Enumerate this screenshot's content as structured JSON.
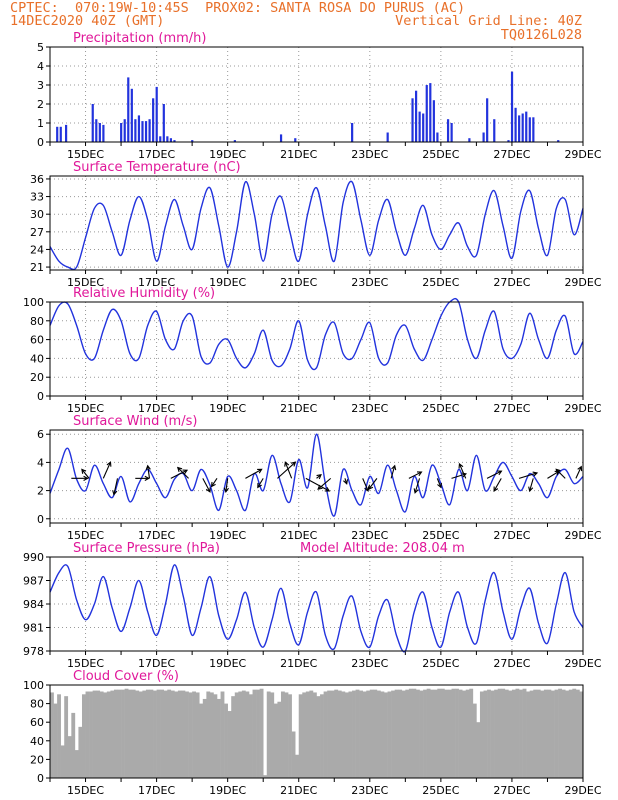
{
  "header": {
    "line1_left": "CPTEC:  070:19W-10:45S  PROX02: SANTA ROSA DO PURUS (AC)",
    "line2_left": "14DEC2020 40Z (GMT)",
    "line2_right": "Vertical Grid Line: 40Z",
    "line3_right": "TQ0126L028"
  },
  "colors": {
    "header": "#e8702a",
    "title": "#e0189a",
    "series": "#2233dd",
    "cloud": "#aaaaaa",
    "wind_arrow": "#000000"
  },
  "x_tick_labels": [
    "15DEC",
    "17DEC",
    "19DEC",
    "21DEC",
    "23DEC",
    "25DEC",
    "27DEC",
    "29DEC"
  ],
  "chart_data": [
    {
      "type": "bar",
      "title": "Precipitation (mm/h)",
      "xlabel": "",
      "ylabel": "",
      "ylim": [
        0,
        5
      ],
      "yticks": [
        0,
        1,
        2,
        3,
        4,
        5
      ],
      "grid": true,
      "x_range_days": [
        14.0,
        29.0
      ],
      "x": [
        14.2,
        14.3,
        14.45,
        15.2,
        15.3,
        15.4,
        15.5,
        16.0,
        16.1,
        16.2,
        16.3,
        16.4,
        16.5,
        16.6,
        16.7,
        16.8,
        16.9,
        17.0,
        17.1,
        17.2,
        17.3,
        17.4,
        17.5,
        18.0,
        19.2,
        20.5,
        20.9,
        22.5,
        23.5,
        24.2,
        24.3,
        24.4,
        24.5,
        24.6,
        24.7,
        24.8,
        24.9,
        25.2,
        25.3,
        25.8,
        26.2,
        26.3,
        26.5,
        26.9,
        27.0,
        27.1,
        27.2,
        27.3,
        27.4,
        27.5,
        27.6,
        28.3
      ],
      "values": [
        0.8,
        0.8,
        0.9,
        2.0,
        1.2,
        1.0,
        0.9,
        1.0,
        1.2,
        3.4,
        2.8,
        1.2,
        1.4,
        1.1,
        1.1,
        1.2,
        2.3,
        2.9,
        0.3,
        2.0,
        0.3,
        0.2,
        0.1,
        0.1,
        0.1,
        0.4,
        0.2,
        1.0,
        0.5,
        2.3,
        2.7,
        1.6,
        1.5,
        3.0,
        3.1,
        2.2,
        0.5,
        1.2,
        1.0,
        0.2,
        0.5,
        2.3,
        1.2,
        0.1,
        3.7,
        1.8,
        1.4,
        1.5,
        1.6,
        1.3,
        1.3,
        0.1
      ]
    },
    {
      "type": "line",
      "title": "Surface Temperature (nC)",
      "xlabel": "",
      "ylabel": "",
      "ylim": [
        20.5,
        36.5
      ],
      "yticks": [
        21,
        24,
        27,
        30,
        33,
        36
      ],
      "grid": true,
      "x_range_days": [
        14.0,
        29.0
      ],
      "x": [
        14.0,
        14.25,
        14.5,
        14.75,
        15.0,
        15.25,
        15.5,
        15.75,
        16.0,
        16.25,
        16.5,
        16.75,
        17.0,
        17.25,
        17.5,
        17.75,
        18.0,
        18.25,
        18.5,
        18.75,
        19.0,
        19.25,
        19.5,
        19.75,
        20.0,
        20.25,
        20.5,
        20.75,
        21.0,
        21.25,
        21.5,
        21.75,
        22.0,
        22.25,
        22.5,
        22.75,
        23.0,
        23.25,
        23.5,
        23.75,
        24.0,
        24.25,
        24.5,
        24.75,
        25.0,
        25.25,
        25.5,
        25.75,
        26.0,
        26.25,
        26.5,
        26.75,
        27.0,
        27.25,
        27.5,
        27.75,
        28.0,
        28.25,
        28.5,
        28.75,
        29.0
      ],
      "series": [
        {
          "values": [
            24.5,
            22.0,
            21.0,
            21.0,
            26.0,
            31.0,
            31.5,
            27.0,
            23.0,
            29.0,
            33.0,
            29.0,
            22.0,
            28.0,
            32.5,
            28.0,
            24.0,
            31.0,
            34.5,
            28.0,
            21.0,
            27.0,
            35.5,
            30.0,
            22.0,
            30.0,
            33.0,
            27.0,
            22.0,
            30.0,
            34.5,
            28.0,
            22.0,
            32.0,
            35.5,
            29.0,
            23.0,
            29.0,
            32.5,
            27.0,
            23.0,
            27.5,
            31.5,
            26.5,
            24.0,
            26.5,
            28.5,
            24.5,
            23.0,
            30.0,
            34.0,
            28.0,
            22.5,
            30.5,
            34.0,
            27.5,
            23.0,
            31.0,
            32.5,
            26.5,
            31.0
          ]
        }
      ]
    },
    {
      "type": "line",
      "title": "Relative Humidity (%)",
      "xlabel": "",
      "ylabel": "",
      "ylim": [
        0,
        100
      ],
      "yticks": [
        0,
        20,
        40,
        60,
        80,
        100
      ],
      "grid": true,
      "x_range_days": [
        14.0,
        29.0
      ],
      "x": [
        14.0,
        14.25,
        14.5,
        14.75,
        15.0,
        15.25,
        15.5,
        15.75,
        16.0,
        16.25,
        16.5,
        16.75,
        17.0,
        17.25,
        17.5,
        17.75,
        18.0,
        18.25,
        18.5,
        18.75,
        19.0,
        19.25,
        19.5,
        19.75,
        20.0,
        20.25,
        20.5,
        20.75,
        21.0,
        21.25,
        21.5,
        21.75,
        22.0,
        22.25,
        22.5,
        22.75,
        23.0,
        23.25,
        23.5,
        23.75,
        24.0,
        24.25,
        24.5,
        24.75,
        25.0,
        25.25,
        25.5,
        25.75,
        26.0,
        26.25,
        26.5,
        26.75,
        27.0,
        27.25,
        27.5,
        27.75,
        28.0,
        28.25,
        28.5,
        28.75,
        29.0
      ],
      "series": [
        {
          "values": [
            75,
            96,
            98,
            75,
            45,
            40,
            70,
            92,
            80,
            45,
            40,
            75,
            90,
            60,
            50,
            80,
            85,
            42,
            35,
            55,
            60,
            40,
            30,
            45,
            70,
            38,
            32,
            50,
            80,
            38,
            30,
            65,
            78,
            45,
            40,
            60,
            78,
            40,
            35,
            65,
            75,
            50,
            38,
            60,
            85,
            100,
            100,
            60,
            40,
            70,
            90,
            50,
            40,
            55,
            88,
            60,
            40,
            70,
            85,
            45,
            58
          ]
        }
      ]
    },
    {
      "type": "line",
      "title": "Surface Wind (m/s)",
      "xlabel": "",
      "ylabel": "",
      "ylim": [
        -0.3,
        6.3
      ],
      "yticks": [
        0,
        2,
        4,
        6
      ],
      "grid": true,
      "x_range_days": [
        14.0,
        29.0
      ],
      "x": [
        14.0,
        14.25,
        14.5,
        14.75,
        15.0,
        15.25,
        15.5,
        15.75,
        16.0,
        16.25,
        16.5,
        16.75,
        17.0,
        17.25,
        17.5,
        17.75,
        18.0,
        18.25,
        18.5,
        18.75,
        19.0,
        19.25,
        19.5,
        19.75,
        20.0,
        20.25,
        20.5,
        20.75,
        21.0,
        21.25,
        21.5,
        21.75,
        22.0,
        22.25,
        22.5,
        22.75,
        23.0,
        23.25,
        23.5,
        23.75,
        24.0,
        24.25,
        24.5,
        24.75,
        25.0,
        25.25,
        25.5,
        25.75,
        26.0,
        26.25,
        26.5,
        26.75,
        27.0,
        27.25,
        27.5,
        27.75,
        28.0,
        28.25,
        28.5,
        28.75,
        29.0
      ],
      "series": [
        {
          "values": [
            1.8,
            3.5,
            5.0,
            2.8,
            2.0,
            3.8,
            2.5,
            1.5,
            3.0,
            1.2,
            2.5,
            3.5,
            2.5,
            1.5,
            2.8,
            3.2,
            2.0,
            3.5,
            2.4,
            0.6,
            3.0,
            2.0,
            0.6,
            3.2,
            2.0,
            4.5,
            2.5,
            1.2,
            4.2,
            2.2,
            6.0,
            2.5,
            0.2,
            3.5,
            2.0,
            1.0,
            3.0,
            1.8,
            3.8,
            2.0,
            0.5,
            3.0,
            1.5,
            3.8,
            2.5,
            1.0,
            3.5,
            2.0,
            4.5,
            2.0,
            3.0,
            4.0,
            3.0,
            2.0,
            3.2,
            2.5,
            1.5,
            3.0,
            3.5,
            2.5,
            3.0
          ]
        }
      ],
      "wind_vectors": {
        "x": [
          14.6,
          15.1,
          15.5,
          15.9,
          16.4,
          16.8,
          17.4,
          17.9,
          18.3,
          18.7,
          19.0,
          19.5,
          20.0,
          20.4,
          20.8,
          21.2,
          21.5,
          21.9,
          22.3,
          22.8,
          23.2,
          23.6,
          24.1,
          24.4,
          24.9,
          25.3,
          25.7,
          26.3,
          26.7,
          27.2,
          27.6,
          28.0,
          28.5,
          28.8
        ],
        "u": [
          1.8,
          -0.8,
          0.8,
          -0.4,
          1.5,
          -0.2,
          1.8,
          -1.2,
          0.8,
          -0.6,
          -0.2,
          1.8,
          -0.6,
          2.0,
          -0.7,
          2.6,
          0.5,
          -1.4,
          0.2,
          0.6,
          -0.9,
          0.4,
          1.4,
          -0.5,
          0.4,
          1.6,
          -0.7,
          1.6,
          -0.8,
          2.0,
          -0.4,
          1.3,
          -1.0,
          0.6
        ],
        "v": [
          0.0,
          1.0,
          1.8,
          -1.8,
          0.0,
          1.4,
          0.9,
          1.2,
          -1.5,
          -0.9,
          -1.5,
          1.0,
          -1.0,
          1.8,
          1.8,
          -1.4,
          0.4,
          -1.2,
          -0.6,
          -1.4,
          -1.2,
          1.4,
          0.7,
          -1.6,
          -1.0,
          0.5,
          1.6,
          0.8,
          -1.4,
          0.6,
          -1.4,
          0.8,
          1.0,
          1.3
        ]
      }
    },
    {
      "type": "line",
      "title": "Surface Pressure (hPa)",
      "annotation": "Model Altitude: 208.04 m",
      "xlabel": "",
      "ylabel": "",
      "ylim": [
        978,
        990
      ],
      "yticks": [
        978,
        981,
        984,
        987,
        990
      ],
      "grid": true,
      "x_range_days": [
        14.0,
        29.0
      ],
      "x": [
        14.0,
        14.25,
        14.5,
        14.75,
        15.0,
        15.25,
        15.5,
        15.75,
        16.0,
        16.25,
        16.5,
        16.75,
        17.0,
        17.25,
        17.5,
        17.75,
        18.0,
        18.25,
        18.5,
        18.75,
        19.0,
        19.25,
        19.5,
        19.75,
        20.0,
        20.25,
        20.5,
        20.75,
        21.0,
        21.25,
        21.5,
        21.75,
        22.0,
        22.25,
        22.5,
        22.75,
        23.0,
        23.25,
        23.5,
        23.75,
        24.0,
        24.25,
        24.5,
        24.75,
        25.0,
        25.25,
        25.5,
        25.75,
        26.0,
        26.25,
        26.5,
        26.75,
        27.0,
        27.25,
        27.5,
        27.75,
        28.0,
        28.25,
        28.5,
        28.75,
        29.0
      ],
      "series": [
        {
          "values": [
            985.5,
            988.0,
            988.8,
            984.5,
            982.0,
            984.0,
            987.5,
            983.5,
            980.5,
            983.5,
            987.0,
            983.0,
            980.0,
            984.0,
            989.0,
            985.0,
            980.0,
            983.5,
            987.5,
            982.5,
            979.5,
            982.0,
            985.5,
            981.0,
            978.5,
            982.0,
            986.0,
            981.5,
            978.8,
            983.0,
            985.5,
            980.0,
            978.3,
            982.5,
            985.0,
            980.5,
            978.5,
            982.5,
            984.5,
            980.0,
            978.0,
            983.0,
            985.5,
            981.0,
            978.5,
            983.0,
            985.5,
            981.0,
            979.0,
            984.5,
            988.0,
            983.0,
            979.5,
            983.5,
            986.0,
            981.5,
            979.0,
            984.0,
            988.0,
            983.0,
            981.0
          ]
        }
      ]
    },
    {
      "type": "bar",
      "title": "Cloud Cover (%)",
      "xlabel": "",
      "ylabel": "",
      "ylim": [
        0,
        100
      ],
      "yticks": [
        0,
        20,
        40,
        60,
        80,
        100
      ],
      "grid": false,
      "x_range_days": [
        14.0,
        29.0
      ],
      "x": [
        14.0,
        14.1,
        14.2,
        14.3,
        14.4,
        14.5,
        14.6,
        14.7,
        14.8,
        14.9,
        15.0,
        15.1,
        15.2,
        15.3,
        15.4,
        15.5,
        15.6,
        15.7,
        15.8,
        15.9,
        16.0,
        16.1,
        16.2,
        16.3,
        16.4,
        16.5,
        16.6,
        16.7,
        16.8,
        16.9,
        17.0,
        17.1,
        17.2,
        17.3,
        17.4,
        17.5,
        17.6,
        17.7,
        17.8,
        17.9,
        18.0,
        18.1,
        18.2,
        18.3,
        18.4,
        18.5,
        18.6,
        18.7,
        18.8,
        18.9,
        19.0,
        19.1,
        19.2,
        19.3,
        19.4,
        19.5,
        19.6,
        19.7,
        19.8,
        19.9,
        20.0,
        20.1,
        20.2,
        20.3,
        20.4,
        20.5,
        20.6,
        20.7,
        20.8,
        20.9,
        21.0,
        21.1,
        21.2,
        21.3,
        21.4,
        21.5,
        21.6,
        21.7,
        21.8,
        21.9,
        22.0,
        22.1,
        22.2,
        22.3,
        22.4,
        22.5,
        22.6,
        22.7,
        22.8,
        22.9,
        23.0,
        23.1,
        23.2,
        23.3,
        23.4,
        23.5,
        23.6,
        23.7,
        23.8,
        23.9,
        24.0,
        24.1,
        24.2,
        24.3,
        24.4,
        24.5,
        24.6,
        24.7,
        24.8,
        24.9,
        25.0,
        25.1,
        25.2,
        25.3,
        25.4,
        25.5,
        25.6,
        25.7,
        25.8,
        25.9,
        26.0,
        26.1,
        26.2,
        26.3,
        26.4,
        26.5,
        26.6,
        26.7,
        26.8,
        26.9,
        27.0,
        27.1,
        27.2,
        27.3,
        27.4,
        27.5,
        27.6,
        27.7,
        27.8,
        27.9,
        28.0,
        28.1,
        28.2,
        28.3,
        28.4,
        28.5,
        28.6,
        28.7,
        28.8,
        28.9
      ],
      "values": [
        92,
        80,
        90,
        35,
        88,
        45,
        70,
        30,
        55,
        90,
        93,
        93,
        94,
        94,
        93,
        92,
        93,
        94,
        95,
        95,
        95,
        96,
        95,
        95,
        94,
        93,
        94,
        95,
        95,
        94,
        95,
        95,
        94,
        95,
        94,
        93,
        94,
        94,
        93,
        92,
        93,
        92,
        80,
        85,
        93,
        92,
        90,
        85,
        93,
        80,
        72,
        88,
        92,
        93,
        94,
        93,
        90,
        95,
        95,
        96,
        3,
        93,
        92,
        80,
        82,
        93,
        92,
        90,
        50,
        25,
        90,
        92,
        93,
        94,
        92,
        88,
        90,
        93,
        94,
        94,
        95,
        94,
        93,
        92,
        93,
        94,
        95,
        94,
        93,
        94,
        95,
        95,
        94,
        93,
        92,
        93,
        94,
        95,
        95,
        94,
        95,
        96,
        96,
        95,
        94,
        95,
        96,
        95,
        95,
        96,
        96,
        95,
        95,
        96,
        96,
        95,
        94,
        95,
        96,
        80,
        60,
        93,
        94,
        95,
        94,
        95,
        96,
        96,
        95,
        94,
        95,
        96,
        95,
        96,
        93,
        94,
        95,
        95,
        94,
        95,
        95,
        94,
        95,
        96,
        95,
        94,
        95,
        96,
        95,
        93
      ]
    }
  ]
}
